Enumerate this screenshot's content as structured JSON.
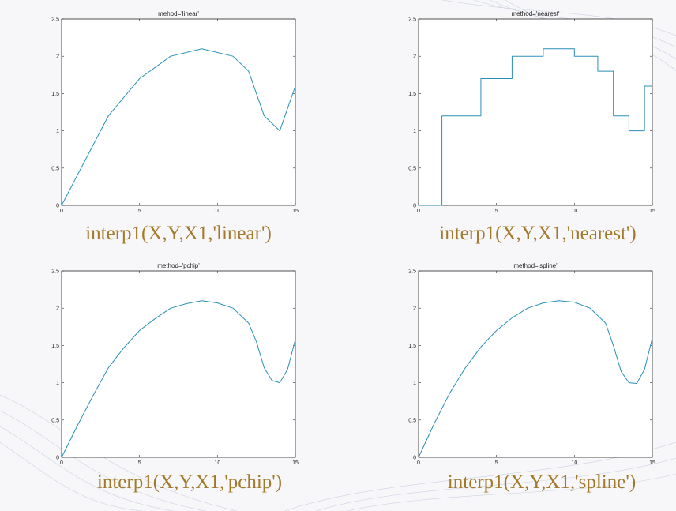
{
  "accent_color": "#a37a2c",
  "line_color": "#2a8fb7",
  "captions": [
    "interp1(X,Y,X1,'linear')",
    "interp1(X,Y,X1,'nearest')",
    "interp1(X,Y,X1,'pchip')",
    "interp1(X,Y,X1,'spline')"
  ],
  "chart_data": [
    {
      "type": "line",
      "title": "mehod='linear'",
      "xlim": [
        0,
        15
      ],
      "ylim": [
        0,
        2.5
      ],
      "xticks": [
        0,
        5,
        10,
        15
      ],
      "yticks": [
        0,
        0.5,
        1,
        1.5,
        2,
        2.5
      ],
      "interpolation": "linear",
      "x": [
        0,
        3,
        5,
        7,
        9,
        11,
        12,
        13,
        14,
        15
      ],
      "y": [
        0,
        1.2,
        1.7,
        2.0,
        2.1,
        2.0,
        1.8,
        1.2,
        1.0,
        1.6
      ]
    },
    {
      "type": "line",
      "title": "method='nearest'",
      "xlim": [
        0,
        15
      ],
      "ylim": [
        0,
        2.5
      ],
      "xticks": [
        0,
        5,
        10,
        15
      ],
      "yticks": [
        0,
        0.5,
        1,
        1.5,
        2,
        2.5
      ],
      "interpolation": "nearest",
      "x": [
        0,
        1.3,
        1.5,
        4,
        6,
        8,
        10,
        11.5,
        12.5,
        13.5,
        14.5,
        15
      ],
      "y": [
        0,
        0,
        1.2,
        1.7,
        2.0,
        2.1,
        2.0,
        1.8,
        1.2,
        1.0,
        1.6,
        1.6
      ]
    },
    {
      "type": "line",
      "title": "method='pchip'",
      "xlim": [
        0,
        15
      ],
      "ylim": [
        0,
        2.5
      ],
      "xticks": [
        0,
        5,
        10,
        15
      ],
      "yticks": [
        0,
        0.5,
        1,
        1.5,
        2,
        2.5
      ],
      "interpolation": "pchip",
      "x": [
        0,
        1,
        2,
        3,
        4,
        5,
        6,
        7,
        8,
        9,
        10,
        11,
        12,
        12.5,
        13,
        13.5,
        14,
        14.5,
        15
      ],
      "y": [
        0,
        0.42,
        0.82,
        1.2,
        1.47,
        1.7,
        1.86,
        2.0,
        2.06,
        2.1,
        2.07,
        2.0,
        1.8,
        1.55,
        1.2,
        1.03,
        1.0,
        1.18,
        1.58
      ]
    },
    {
      "type": "line",
      "title": "method='spline'",
      "xlim": [
        0,
        15
      ],
      "ylim": [
        0,
        2.5
      ],
      "xticks": [
        0,
        5,
        10,
        15
      ],
      "yticks": [
        0,
        0.5,
        1,
        1.5,
        2,
        2.5
      ],
      "interpolation": "spline",
      "x": [
        0,
        1,
        2,
        3,
        4,
        5,
        6,
        7,
        8,
        9,
        10,
        11,
        12,
        12.5,
        13,
        13.5,
        14,
        14.5,
        15
      ],
      "y": [
        0,
        0.45,
        0.86,
        1.2,
        1.48,
        1.7,
        1.87,
        2.0,
        2.07,
        2.1,
        2.08,
        2.0,
        1.8,
        1.5,
        1.15,
        1.0,
        0.99,
        1.18,
        1.6
      ]
    }
  ]
}
